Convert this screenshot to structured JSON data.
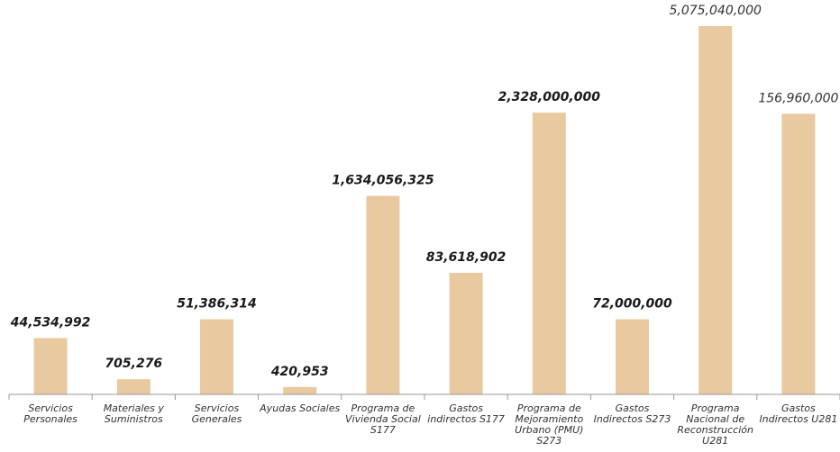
{
  "chart_data": {
    "type": "bar",
    "title": "",
    "xlabel": "",
    "ylabel": "",
    "grid": false,
    "legend": "none",
    "bar_color": "#e8c9a0",
    "categories": [
      "Servicios Personales",
      "Materiales y Suministros",
      "Servicios Generales",
      "Ayudas Sociales",
      "Programa de Vivienda Social S177",
      "Gastos indirectos S177",
      "Programa de Mejoramiento Urbano (PMU) S273",
      "Gastos Indirectos  S273",
      "Programa Nacional de Reconstrucción U281",
      "Gastos Indirectos U281"
    ],
    "category_lines": [
      [
        "Servicios",
        "Personales"
      ],
      [
        "Materiales y",
        "Suministros"
      ],
      [
        "Servicios",
        "Generales"
      ],
      [
        "Ayudas Sociales"
      ],
      [
        "Programa de",
        "Vivienda Social",
        "S177"
      ],
      [
        "Gastos",
        "indirectos S177"
      ],
      [
        "Programa de",
        "Mejoramiento",
        "Urbano (PMU)",
        "S273"
      ],
      [
        "Gastos",
        "Indirectos  S273"
      ],
      [
        "Programa",
        "Nacional de",
        "Reconstrucción",
        "U281"
      ],
      [
        "Gastos",
        "Indirectos U281"
      ]
    ],
    "values": [
      44534992,
      705276,
      51386314,
      420953,
      1634056325,
      83618902,
      2328000000,
      72000000,
      5075040000,
      156960000
    ],
    "value_labels": [
      "44,534,992",
      "705,276",
      "51,386,314",
      "420,953",
      "1,634,056,325",
      "83,618,902",
      "2,328,000,000",
      "72,000,000",
      "5,075,040,000",
      "156,960,000"
    ],
    "label_emphasis": [
      "bold",
      "bold",
      "bold",
      "bold",
      "bold",
      "bold",
      "bold",
      "bold",
      "normal",
      "normal"
    ],
    "axis_scale": "non-uniform (bar heights not proportional to values)",
    "bar_fraction_of_max": [
      0.153,
      0.041,
      0.204,
      0.02,
      0.539,
      0.33,
      0.765,
      0.204,
      1.0,
      0.762
    ]
  }
}
